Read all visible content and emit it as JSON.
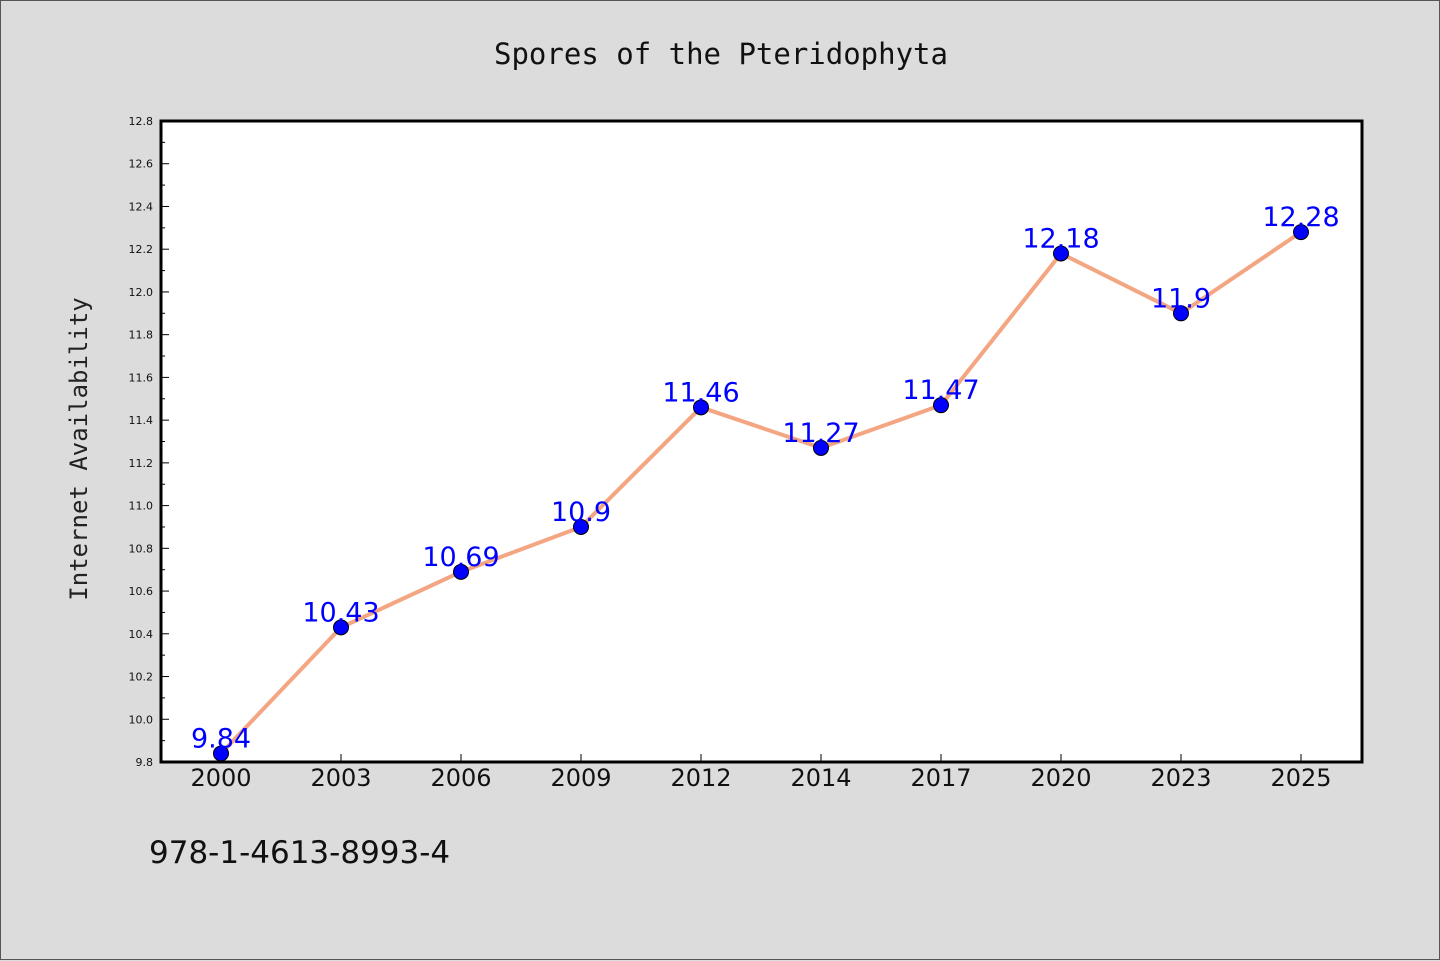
{
  "colors": {
    "figure_background": "#dcdcdc",
    "plot_background": "#ffffff",
    "line": "#f4a582",
    "marker": "#0000ff",
    "data_label": "#0000ff",
    "axis": "#000000"
  },
  "footer_text": "978-1-4613-8993-4",
  "chart_data": {
    "type": "line",
    "title": "Spores of the Pteridophyta",
    "xlabel": "",
    "ylabel": "Internet Availability",
    "categories": [
      "2000",
      "2003",
      "2006",
      "2009",
      "2012",
      "2014",
      "2017",
      "2020",
      "2023",
      "2025"
    ],
    "series": [
      {
        "values": [
          9.84,
          10.43,
          10.69,
          10.9,
          11.46,
          11.27,
          11.47,
          12.18,
          11.9,
          12.28
        ],
        "data_labels": [
          "9.84",
          "10.43",
          "10.69",
          "10.9",
          "11.46",
          "11.27",
          "11.47",
          "12.18",
          "11.9",
          "12.28"
        ]
      }
    ],
    "ylim": [
      9.8,
      12.8
    ],
    "y_ticks": [
      "9.8",
      "10.0",
      "10.2",
      "10.4",
      "10.6",
      "10.8",
      "11.0",
      "11.2",
      "11.4",
      "11.6",
      "11.8",
      "12.0",
      "12.2",
      "12.4",
      "12.6",
      "12.8"
    ],
    "y_tick_values": [
      9.8,
      10.0,
      10.2,
      10.4,
      10.6,
      10.8,
      11.0,
      11.2,
      11.4,
      11.6,
      11.8,
      12.0,
      12.2,
      12.4,
      12.6,
      12.8
    ],
    "grid": false,
    "legend": "none"
  }
}
